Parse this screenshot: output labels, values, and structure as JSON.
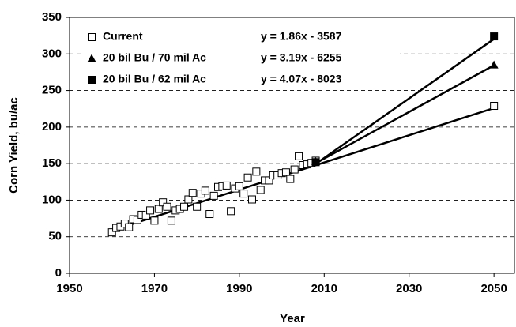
{
  "chart_data": {
    "type": "scatter",
    "xlabel": "Year",
    "ylabel": "Corn Yield, bu/ac",
    "xlim": [
      1950,
      2055
    ],
    "xticks": [
      1950,
      1970,
      1990,
      2010,
      2030,
      2050
    ],
    "ylim": [
      0,
      350
    ],
    "yticks": [
      0,
      50,
      100,
      150,
      200,
      250,
      300,
      350
    ],
    "grid": true,
    "legend": "upper left",
    "series": [
      {
        "name": "Current",
        "marker": "open-square",
        "color": "#000000",
        "equation": "y = 1.86x - 3587",
        "x": [
          1960,
          1961,
          1962,
          1963,
          1964,
          1965,
          1966,
          1967,
          1968,
          1969,
          1970,
          1971,
          1972,
          1973,
          1974,
          1975,
          1976,
          1977,
          1978,
          1979,
          1980,
          1981,
          1982,
          1983,
          1984,
          1985,
          1986,
          1987,
          1988,
          1989,
          1990,
          1991,
          1992,
          1993,
          1994,
          1995,
          1996,
          1997,
          1998,
          1999,
          2000,
          2001,
          2002,
          2003,
          2004,
          2005,
          2006,
          2007,
          2008,
          2050
        ],
        "values": [
          56,
          62,
          64,
          68,
          63,
          74,
          73,
          80,
          79,
          86,
          72,
          88,
          97,
          91,
          72,
          86,
          88,
          91,
          101,
          110,
          91,
          109,
          113,
          81,
          106,
          118,
          119,
          120,
          85,
          116,
          119,
          109,
          131,
          101,
          139,
          114,
          127,
          127,
          134,
          134,
          137,
          138,
          129,
          142,
          160,
          148,
          149,
          151,
          154,
          229
        ],
        "trendline": {
          "x": [
            1960,
            2050
          ],
          "values": [
            58.6,
            226
          ]
        }
      },
      {
        "name": "20 bil Bu / 70 mil Ac",
        "marker": "triangle",
        "color": "#000000",
        "equation": "y = 3.19x - 6255",
        "x": [
          2008,
          2050
        ],
        "values": [
          153,
          285
        ],
        "trendline": {
          "x": [
            2008,
            2050
          ],
          "values": [
            150.5,
            284.5
          ]
        }
      },
      {
        "name": "20 bil Bu / 62 mil Ac",
        "marker": "filled-square",
        "color": "#000000",
        "equation": "y = 4.07x - 8023",
        "x": [
          2008,
          2050
        ],
        "values": [
          152,
          324
        ],
        "trendline": {
          "x": [
            2008,
            2050
          ],
          "values": [
            149.6,
            320.5
          ]
        }
      }
    ]
  }
}
